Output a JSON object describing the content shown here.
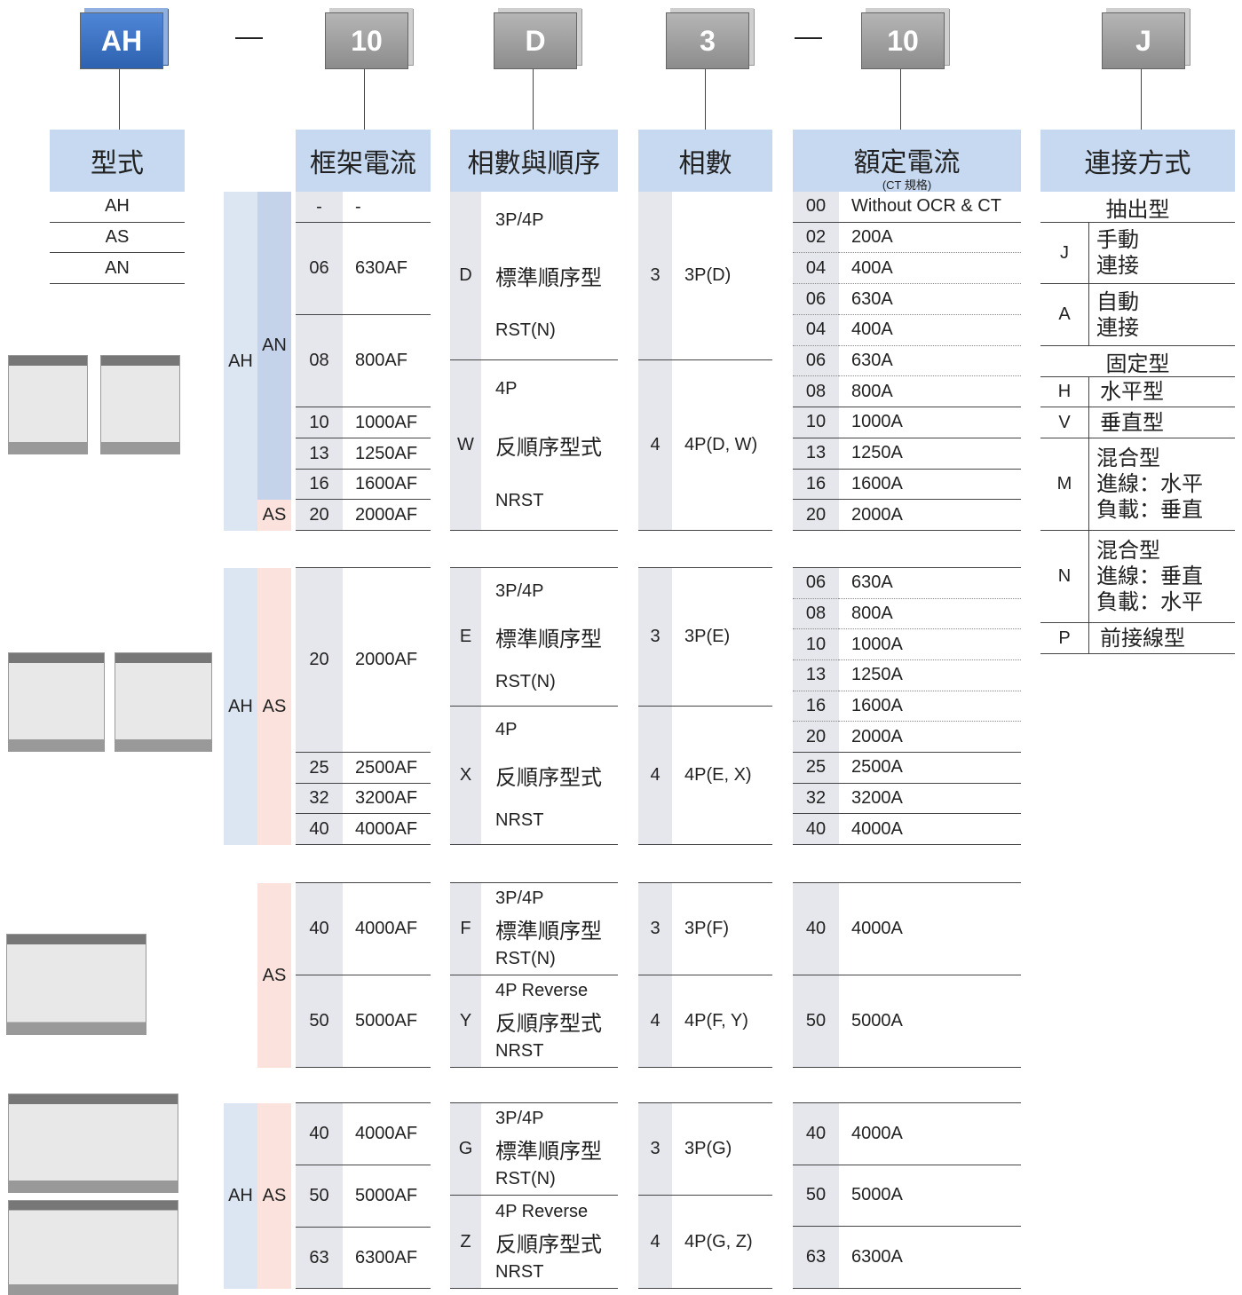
{
  "header_codes": [
    "AH",
    "10",
    "D",
    "3",
    "10",
    "J"
  ],
  "column_headers": {
    "type": "型式",
    "frame": "框架電流",
    "sequence": "相數與順序",
    "phases": "相數",
    "rated": "額定電流",
    "rated_note": "(CT 規格)",
    "connection": "連接方式"
  },
  "types": [
    "AH",
    "AS",
    "AN"
  ],
  "groups": [
    {
      "outer": "AH",
      "inner": [
        "AN",
        "AS"
      ],
      "frame": [
        [
          "-",
          "-"
        ],
        [
          "06",
          "630AF"
        ],
        [
          "08",
          "800AF"
        ],
        [
          "10",
          "1000AF"
        ],
        [
          "13",
          "1250AF"
        ],
        [
          "16",
          "1600AF"
        ],
        [
          "20",
          "2000AF"
        ]
      ],
      "sequence": [
        {
          "code": "D",
          "lines": [
            "3P/4P",
            "標準順序型",
            "RST(N)"
          ]
        },
        {
          "code": "W",
          "lines": [
            "4P",
            "反順序型式",
            "NRST"
          ]
        }
      ],
      "phases": [
        [
          "3",
          "3P(D)"
        ],
        [
          "4",
          "4P(D, W)"
        ]
      ],
      "rated": [
        [
          "00",
          "Without OCR & CT"
        ],
        [
          "02",
          "200A"
        ],
        [
          "04",
          "400A"
        ],
        [
          "06",
          "630A"
        ],
        [
          "04",
          "400A"
        ],
        [
          "06",
          "630A"
        ],
        [
          "08",
          "800A"
        ],
        [
          "10",
          "1000A"
        ],
        [
          "13",
          "1250A"
        ],
        [
          "16",
          "1600A"
        ],
        [
          "20",
          "2000A"
        ]
      ]
    },
    {
      "outer": "AH",
      "inner": [
        "AS"
      ],
      "frame": [
        [
          "20",
          "2000AF"
        ],
        [
          "25",
          "2500AF"
        ],
        [
          "32",
          "3200AF"
        ],
        [
          "40",
          "4000AF"
        ]
      ],
      "sequence": [
        {
          "code": "E",
          "lines": [
            "3P/4P",
            "標準順序型",
            "RST(N)"
          ]
        },
        {
          "code": "X",
          "lines": [
            "4P",
            "反順序型式",
            "NRST"
          ]
        }
      ],
      "phases": [
        [
          "3",
          "3P(E)"
        ],
        [
          "4",
          "4P(E, X)"
        ]
      ],
      "rated": [
        [
          "06",
          "630A"
        ],
        [
          "08",
          "800A"
        ],
        [
          "10",
          "1000A"
        ],
        [
          "13",
          "1250A"
        ],
        [
          "16",
          "1600A"
        ],
        [
          "20",
          "2000A"
        ],
        [
          "25",
          "2500A"
        ],
        [
          "32",
          "3200A"
        ],
        [
          "40",
          "4000A"
        ]
      ]
    },
    {
      "inner": [
        "AS"
      ],
      "frame": [
        [
          "40",
          "4000AF"
        ],
        [
          "50",
          "5000AF"
        ]
      ],
      "sequence": [
        {
          "code": "F",
          "lines": [
            "3P/4P",
            "標準順序型",
            "RST(N)"
          ]
        },
        {
          "code": "Y",
          "lines": [
            "4P Reverse",
            "反順序型式",
            "NRST"
          ]
        }
      ],
      "phases": [
        [
          "3",
          "3P(F)"
        ],
        [
          "4",
          "4P(F, Y)"
        ]
      ],
      "rated": [
        [
          "40",
          "4000A"
        ],
        [
          "50",
          "5000A"
        ]
      ]
    },
    {
      "outer": "AH",
      "inner": [
        "AS"
      ],
      "frame": [
        [
          "40",
          "4000AF"
        ],
        [
          "50",
          "5000AF"
        ],
        [
          "63",
          "6300AF"
        ]
      ],
      "sequence": [
        {
          "code": "G",
          "lines": [
            "3P/4P",
            "標準順序型",
            "RST(N)"
          ]
        },
        {
          "code": "Z",
          "lines": [
            "4P Reverse",
            "反順序型式",
            "NRST"
          ]
        }
      ],
      "phases": [
        [
          "3",
          "3P(G)"
        ],
        [
          "4",
          "4P(G, Z)"
        ]
      ],
      "rated": [
        [
          "40",
          "4000A"
        ],
        [
          "50",
          "5000A"
        ],
        [
          "63",
          "6300A"
        ]
      ]
    }
  ],
  "connection": [
    {
      "section": "抽出型"
    },
    {
      "code": "J",
      "lines": [
        "手動",
        "連接"
      ]
    },
    {
      "code": "A",
      "lines": [
        "自動",
        "連接"
      ]
    },
    {
      "section": "固定型"
    },
    {
      "code": "H",
      "lines": [
        "水平型"
      ]
    },
    {
      "code": "V",
      "lines": [
        "垂直型"
      ]
    },
    {
      "code": "M",
      "lines": [
        "混合型",
        "進線：水平",
        "負載：垂直"
      ]
    },
    {
      "code": "N",
      "lines": [
        "混合型",
        "進線：垂直",
        "負載：水平"
      ]
    },
    {
      "code": "P",
      "lines": [
        "前接線型"
      ]
    }
  ]
}
